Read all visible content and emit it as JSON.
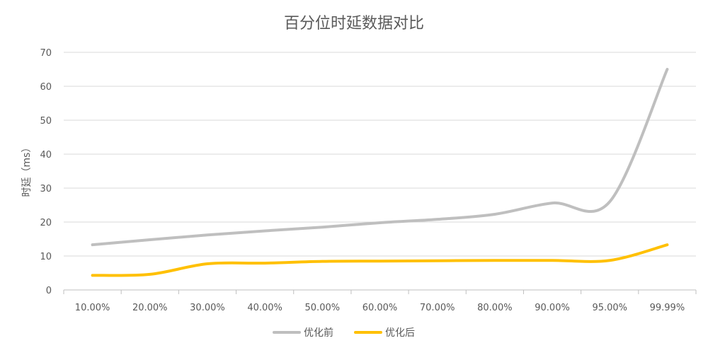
{
  "chart_data": {
    "type": "line",
    "title": "百分位时延数据对比",
    "xlabel": "",
    "ylabel": "时延（ms）",
    "categories": [
      "10.00%",
      "20.00%",
      "30.00%",
      "40.00%",
      "50.00%",
      "60.00%",
      "70.00%",
      "80.00%",
      "90.00%",
      "95.00%",
      "99.99%"
    ],
    "series": [
      {
        "name": "优化前",
        "color": "#bfbfbf",
        "values": [
          13.3,
          14.8,
          16.2,
          17.4,
          18.5,
          19.8,
          20.8,
          22.3,
          25.6,
          26.0,
          65.0
        ]
      },
      {
        "name": "优化后",
        "color": "#ffc000",
        "values": [
          4.3,
          4.6,
          7.7,
          7.9,
          8.4,
          8.5,
          8.6,
          8.7,
          8.7,
          8.7,
          13.3
        ]
      }
    ],
    "ylim": [
      0,
      70
    ],
    "yticks": [
      0,
      10,
      20,
      30,
      40,
      50,
      60,
      70
    ],
    "grid": true,
    "legend": "bottom"
  }
}
